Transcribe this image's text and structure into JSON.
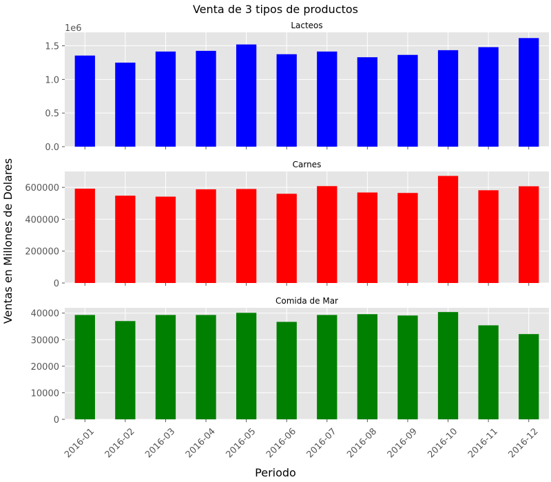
{
  "chart_data": {
    "type": "bar",
    "title": "Venta de 3 tipos de productos",
    "xlabel": "Periodo",
    "ylabel": "Ventas en Millones de Dolares",
    "categories": [
      "2016-01",
      "2016-02",
      "2016-03",
      "2016-04",
      "2016-05",
      "2016-06",
      "2016-07",
      "2016-08",
      "2016-09",
      "2016-10",
      "2016-11",
      "2016-12"
    ],
    "grid": true,
    "panels": [
      {
        "title": "Lacteos",
        "color": "#0000ff",
        "offset_label": "1e6",
        "ylim": [
          0,
          1700000
        ],
        "yticks": [
          0,
          500000,
          1000000,
          1500000
        ],
        "ytick_labels": [
          "0.0",
          "0.5",
          "1.0",
          "1.5"
        ],
        "values": [
          1355000,
          1250000,
          1415000,
          1425000,
          1520000,
          1375000,
          1415000,
          1330000,
          1365000,
          1435000,
          1480000,
          1615000
        ]
      },
      {
        "title": "Carnes",
        "color": "#ff0000",
        "ylim": [
          0,
          700000
        ],
        "yticks": [
          0,
          200000,
          400000,
          600000
        ],
        "ytick_labels": [
          "0",
          "200000",
          "400000",
          "600000"
        ],
        "values": [
          592000,
          548000,
          542000,
          588000,
          590000,
          560000,
          608000,
          568000,
          565000,
          672000,
          582000,
          607000
        ]
      },
      {
        "title": "Comida de Mar",
        "color": "#008000",
        "ylim": [
          0,
          42000
        ],
        "yticks": [
          0,
          10000,
          20000,
          30000,
          40000
        ],
        "ytick_labels": [
          "0",
          "10000",
          "20000",
          "30000",
          "40000"
        ],
        "values": [
          39300,
          37000,
          39300,
          39300,
          40100,
          36700,
          39300,
          39600,
          39100,
          40400,
          35400,
          32100
        ]
      }
    ]
  }
}
